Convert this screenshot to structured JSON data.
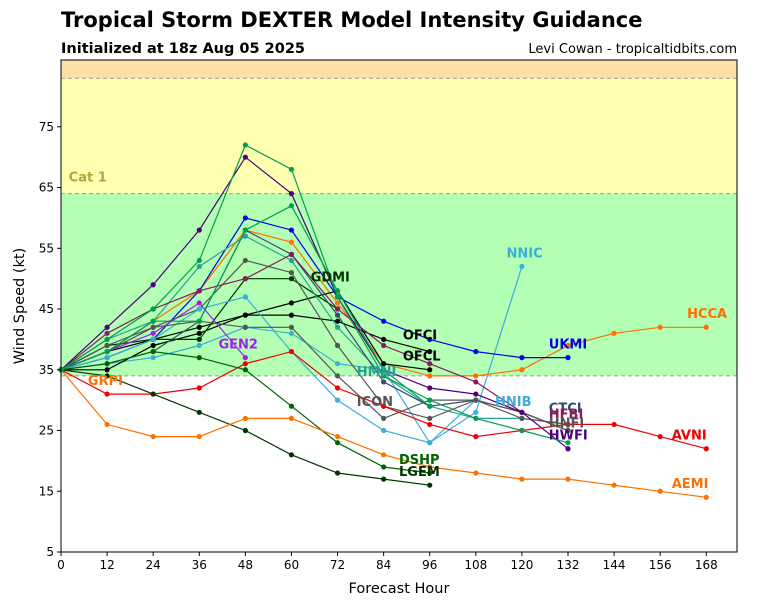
{
  "title": "Tropical Storm DEXTER Model Intensity Guidance",
  "subtitle": "Initialized at 18z Aug 05 2025",
  "credit": "Levi Cowan - tropicaltidbits.com",
  "chart_data": {
    "type": "line",
    "xlabel": "Forecast Hour",
    "ylabel": "Wind Speed (kt)",
    "xlim": [
      0,
      176
    ],
    "ylim": [
      5,
      86
    ],
    "xticks": [
      0,
      12,
      24,
      36,
      48,
      60,
      72,
      84,
      96,
      108,
      120,
      132,
      144,
      156,
      168
    ],
    "yticks": [
      5,
      15,
      25,
      35,
      45,
      55,
      65,
      75
    ],
    "grid": false,
    "legend": "none (labels at line ends)",
    "bands": [
      {
        "from": 5,
        "to": 34,
        "color": "#ffffff"
      },
      {
        "from": 34,
        "to": 64,
        "color": "#b3ffb3"
      },
      {
        "from": 64,
        "to": 83,
        "color": "#ffffb0"
      },
      {
        "from": 83,
        "to": 86,
        "color": "#ffdfa8"
      }
    ],
    "band_lines": [
      34,
      64,
      83
    ],
    "band_labels": [
      {
        "text": "Cat 1",
        "x": 2,
        "y": 66,
        "color": "#a8a83a"
      }
    ],
    "series": [
      {
        "name": "NNIC",
        "color": "#3aaed8",
        "label_x": 116,
        "label_y": 53.5,
        "points": [
          [
            0,
            35
          ],
          [
            12,
            36
          ],
          [
            24,
            37
          ],
          [
            36,
            39
          ],
          [
            48,
            42
          ],
          [
            60,
            41
          ],
          [
            72,
            36
          ],
          [
            84,
            35
          ],
          [
            96,
            23
          ],
          [
            108,
            28
          ],
          [
            120,
            52
          ]
        ]
      },
      {
        "name": "HCCA",
        "color": "#ff7000",
        "label_x": 163,
        "label_y": 43.5,
        "points": [
          [
            0,
            35
          ],
          [
            12,
            38
          ],
          [
            24,
            43
          ],
          [
            36,
            48
          ],
          [
            48,
            58
          ],
          [
            60,
            56
          ],
          [
            72,
            46
          ],
          [
            84,
            36
          ],
          [
            96,
            34
          ],
          [
            108,
            34
          ],
          [
            120,
            35
          ],
          [
            132,
            39
          ],
          [
            144,
            41
          ],
          [
            156,
            42
          ],
          [
            168,
            42
          ]
        ]
      },
      {
        "name": "UKMI",
        "color": "#0000ee",
        "label_x": 127,
        "label_y": 38.5,
        "points": [
          [
            0,
            35
          ],
          [
            12,
            37
          ],
          [
            24,
            40
          ],
          [
            36,
            48
          ],
          [
            48,
            60
          ],
          [
            60,
            58
          ],
          [
            72,
            47
          ],
          [
            84,
            43
          ],
          [
            96,
            40
          ],
          [
            108,
            38
          ],
          [
            120,
            37
          ],
          [
            132,
            37
          ]
        ]
      },
      {
        "name": "OFCI",
        "color": "#000000",
        "label_x": 89,
        "label_y": 40,
        "points": [
          [
            0,
            35
          ],
          [
            12,
            38
          ],
          [
            24,
            40
          ],
          [
            36,
            42
          ],
          [
            48,
            44
          ],
          [
            60,
            44
          ],
          [
            72,
            43
          ],
          [
            84,
            40
          ],
          [
            96,
            38
          ]
        ]
      },
      {
        "name": "OFCL",
        "color": "#000000",
        "label_x": 89,
        "label_y": 36.5,
        "points": [
          [
            0,
            35
          ],
          [
            12,
            35
          ],
          [
            24,
            39
          ],
          [
            36,
            41
          ],
          [
            48,
            44
          ],
          [
            60,
            46
          ],
          [
            72,
            48
          ],
          [
            84,
            36
          ],
          [
            96,
            35
          ]
        ]
      },
      {
        "name": "GDMI",
        "color": "#003300",
        "label_x": 65,
        "label_y": 49.5,
        "points": [
          [
            0,
            35
          ],
          [
            12,
            39
          ],
          [
            24,
            40
          ],
          [
            36,
            40
          ],
          [
            48,
            50
          ],
          [
            60,
            50
          ],
          [
            72,
            45
          ]
        ]
      },
      {
        "name": "GEN2",
        "color": "#a020f0",
        "label_x": 41,
        "label_y": 38.5,
        "points": [
          [
            0,
            35
          ],
          [
            12,
            38
          ],
          [
            24,
            41
          ],
          [
            36,
            46
          ],
          [
            48,
            37
          ]
        ]
      },
      {
        "name": "HMNI",
        "color": "#2aa198",
        "label_x": 77,
        "label_y": 34,
        "points": [
          [
            0,
            35
          ],
          [
            12,
            40
          ],
          [
            24,
            43
          ],
          [
            36,
            52
          ],
          [
            48,
            57
          ],
          [
            60,
            53
          ],
          [
            72,
            42
          ],
          [
            84,
            34
          ],
          [
            96,
            29
          ],
          [
            108,
            27
          ],
          [
            120,
            27
          ]
        ]
      },
      {
        "name": "ICON",
        "color": "#555555",
        "label_x": 77,
        "label_y": 29,
        "points": [
          [
            0,
            35
          ],
          [
            12,
            38
          ],
          [
            24,
            42
          ],
          [
            36,
            45
          ],
          [
            48,
            53
          ],
          [
            60,
            51
          ],
          [
            72,
            39
          ],
          [
            84,
            29
          ],
          [
            96,
            27
          ],
          [
            108,
            30
          ],
          [
            120,
            27
          ],
          [
            132,
            26
          ]
        ]
      },
      {
        "name": "HNIB",
        "color": "#3aaed8",
        "label_x": 113,
        "label_y": 29,
        "points": [
          [
            0,
            35
          ],
          [
            12,
            37
          ],
          [
            24,
            40
          ],
          [
            36,
            45
          ],
          [
            48,
            47
          ],
          [
            60,
            38
          ],
          [
            72,
            30
          ],
          [
            84,
            25
          ],
          [
            96,
            23
          ],
          [
            108,
            30
          ]
        ]
      },
      {
        "name": "CTCI",
        "color": "#2f4f6f",
        "label_x": 127,
        "label_y": 28,
        "points": [
          [
            0,
            35
          ],
          [
            12,
            36
          ],
          [
            24,
            38
          ],
          [
            36,
            43
          ],
          [
            48,
            58
          ],
          [
            60,
            54
          ],
          [
            72,
            44
          ],
          [
            84,
            33
          ],
          [
            96,
            29
          ],
          [
            108,
            30
          ],
          [
            120,
            28
          ],
          [
            132,
            25
          ]
        ]
      },
      {
        "name": "HFBI",
        "color": "#8b1a5a",
        "label_x": 127,
        "label_y": 27,
        "points": [
          [
            0,
            35
          ],
          [
            12,
            41
          ],
          [
            24,
            45
          ],
          [
            36,
            48
          ],
          [
            48,
            50
          ],
          [
            60,
            54
          ],
          [
            72,
            45
          ],
          [
            84,
            39
          ],
          [
            96,
            36
          ],
          [
            108,
            33
          ],
          [
            120,
            28
          ],
          [
            132,
            25
          ]
        ]
      },
      {
        "name": "HNFI",
        "color": "#555555",
        "label_x": 127,
        "label_y": 25.5,
        "points": [
          [
            0,
            35
          ],
          [
            12,
            39
          ],
          [
            24,
            42
          ],
          [
            36,
            43
          ],
          [
            48,
            42
          ],
          [
            60,
            42
          ],
          [
            72,
            34
          ],
          [
            84,
            27
          ],
          [
            96,
            30
          ],
          [
            108,
            30
          ],
          [
            120,
            28
          ],
          [
            132,
            25
          ]
        ]
      },
      {
        "name": "HWFI",
        "color": "#4b0082",
        "label_x": 127,
        "label_y": 23.5,
        "points": [
          [
            0,
            35
          ],
          [
            12,
            42
          ],
          [
            24,
            49
          ],
          [
            36,
            58
          ],
          [
            48,
            70
          ],
          [
            60,
            64
          ],
          [
            72,
            47
          ],
          [
            84,
            35
          ],
          [
            96,
            32
          ],
          [
            108,
            31
          ],
          [
            120,
            28
          ],
          [
            132,
            22
          ]
        ]
      },
      {
        "name": "AVNI",
        "color": "#ee0000",
        "label_x": 159,
        "label_y": 23.5,
        "points": [
          [
            0,
            35
          ],
          [
            12,
            31
          ],
          [
            24,
            31
          ],
          [
            36,
            32
          ],
          [
            48,
            36
          ],
          [
            60,
            38
          ],
          [
            72,
            32
          ],
          [
            84,
            29
          ],
          [
            96,
            26
          ],
          [
            108,
            24
          ],
          [
            120,
            25
          ],
          [
            132,
            26
          ],
          [
            144,
            26
          ],
          [
            156,
            24
          ],
          [
            168,
            22
          ]
        ]
      },
      {
        "name": "DSHP",
        "color": "#006400",
        "label_x": 88,
        "label_y": 19.5,
        "points": [
          [
            0,
            35
          ],
          [
            12,
            36
          ],
          [
            24,
            38
          ],
          [
            36,
            37
          ],
          [
            48,
            35
          ],
          [
            60,
            29
          ],
          [
            72,
            23
          ],
          [
            84,
            19
          ],
          [
            96,
            18
          ]
        ]
      },
      {
        "name": "LGEM",
        "color": "#003300",
        "label_x": 88,
        "label_y": 17.5,
        "points": [
          [
            0,
            35
          ],
          [
            12,
            34
          ],
          [
            24,
            31
          ],
          [
            36,
            28
          ],
          [
            48,
            25
          ],
          [
            60,
            21
          ],
          [
            72,
            18
          ],
          [
            84,
            17
          ],
          [
            96,
            16
          ]
        ]
      },
      {
        "name": "AEMI",
        "color": "#ff7000",
        "label_x": 159,
        "label_y": 15.5,
        "points": [
          [
            0,
            35
          ],
          [
            12,
            26
          ],
          [
            24,
            24
          ],
          [
            36,
            24
          ],
          [
            48,
            27
          ],
          [
            60,
            27
          ],
          [
            72,
            24
          ],
          [
            84,
            21
          ],
          [
            96,
            19
          ],
          [
            108,
            18
          ],
          [
            120,
            17
          ],
          [
            132,
            17
          ],
          [
            144,
            16
          ],
          [
            156,
            15
          ],
          [
            168,
            14
          ]
        ]
      },
      {
        "name": "GRPI",
        "color": "#ff7000",
        "label_x": 7,
        "label_y": 32.5,
        "points": [
          [
            0,
            35
          ]
        ]
      },
      {
        "name": "",
        "color": "#00a050",
        "label_x": null,
        "label_y": null,
        "points": [
          [
            0,
            35
          ],
          [
            12,
            40
          ],
          [
            24,
            45
          ],
          [
            36,
            53
          ],
          [
            48,
            72
          ],
          [
            60,
            68
          ],
          [
            72,
            47
          ],
          [
            84,
            34
          ],
          [
            96,
            30
          ],
          [
            108,
            27
          ],
          [
            120,
            25
          ],
          [
            132,
            23
          ]
        ]
      },
      {
        "name": "",
        "color": "#00a050",
        "label_x": null,
        "label_y": null,
        "points": [
          [
            0,
            35
          ],
          [
            12,
            38
          ],
          [
            24,
            43
          ],
          [
            36,
            43
          ],
          [
            48,
            58
          ],
          [
            60,
            62
          ],
          [
            72,
            48
          ],
          [
            84,
            35
          ],
          [
            96,
            29
          ]
        ]
      }
    ]
  }
}
